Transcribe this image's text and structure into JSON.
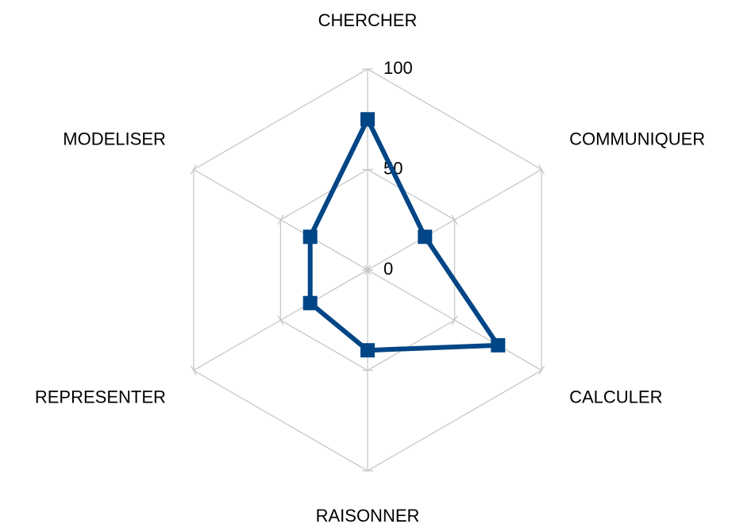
{
  "chart_data": {
    "type": "radar",
    "categories": [
      "CHERCHER",
      "COMMUNIQUER",
      "CALCULER",
      "RAISONNER",
      "REPRESENTER",
      "MODELISER"
    ],
    "series": [
      {
        "color": "#004586",
        "values": [
          75,
          33,
          75,
          40,
          33,
          33
        ]
      }
    ],
    "ylim": [
      0,
      100
    ],
    "yticks": [
      0,
      50,
      100
    ],
    "grid": true
  }
}
